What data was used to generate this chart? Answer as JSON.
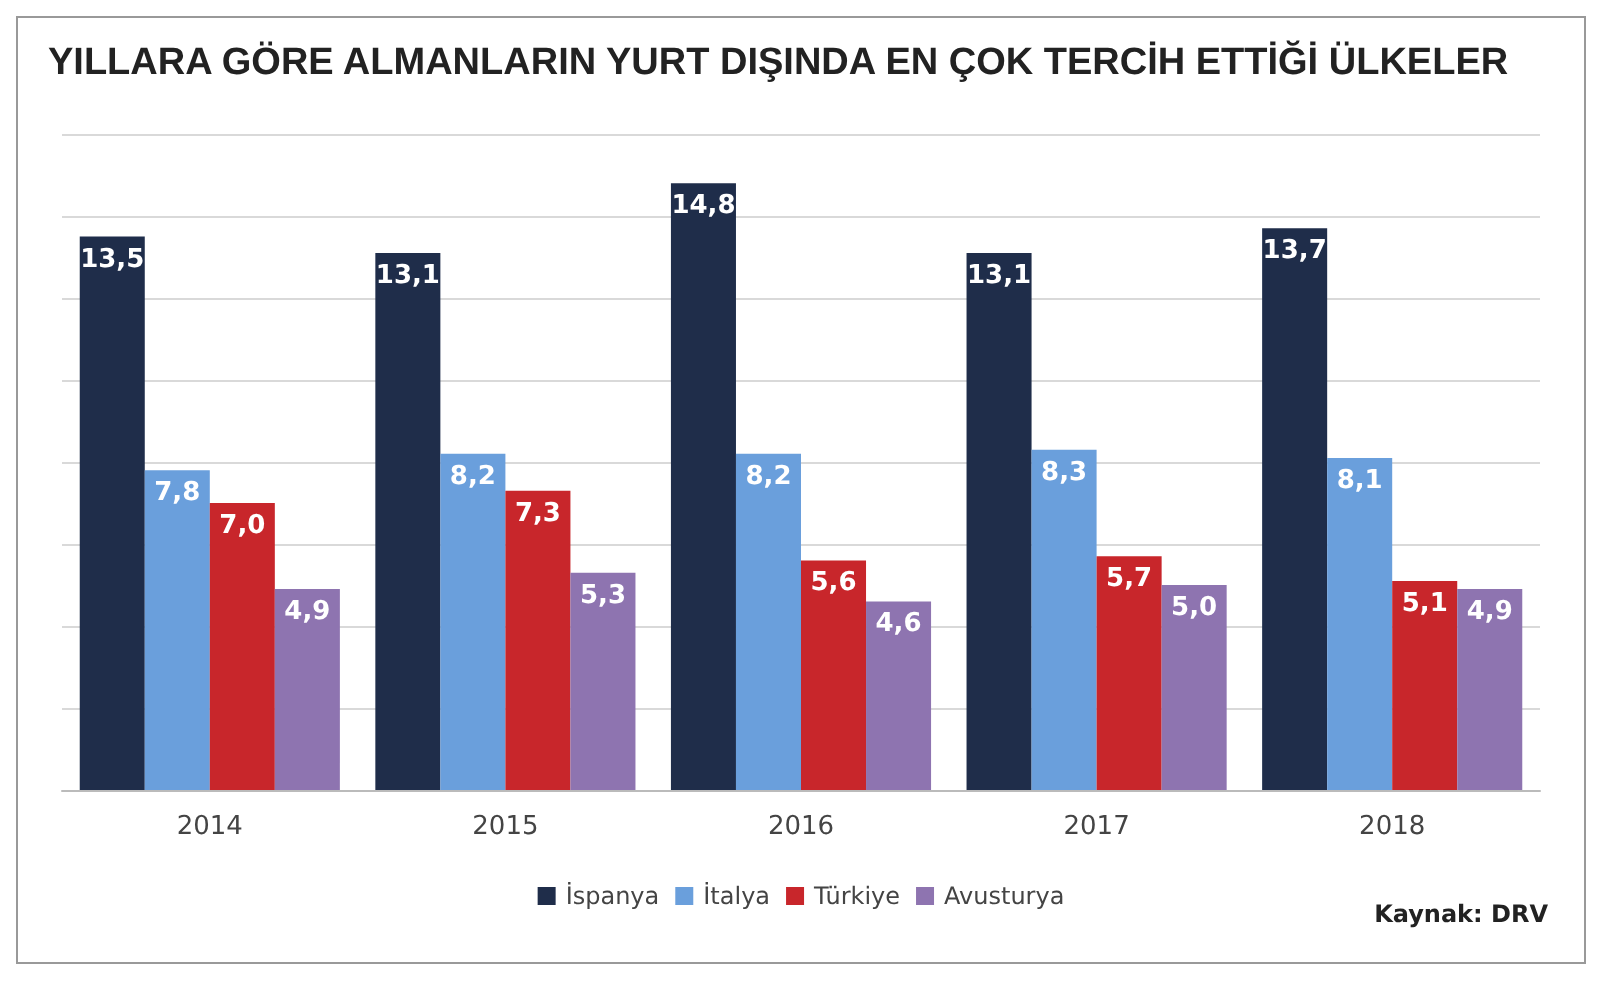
{
  "chart_data": {
    "type": "bar",
    "title": "YILLARA GÖRE ALMANLARIN YURT DIŞINDA EN ÇOK TERCİH ETTİĞİ ÜLKELER",
    "categories": [
      "2014",
      "2015",
      "2016",
      "2017",
      "2018"
    ],
    "series": [
      {
        "name": "İspanya",
        "color": "#1f2d4a",
        "values": [
          13.5,
          13.1,
          14.8,
          13.1,
          13.7
        ],
        "value_labels": [
          "13,5",
          "13,1",
          "14,8",
          "13,1",
          "13,7"
        ]
      },
      {
        "name": "İtalya",
        "color": "#6a9fdc",
        "values": [
          7.8,
          8.2,
          8.2,
          8.3,
          8.1
        ],
        "value_labels": [
          "7,8",
          "8,2",
          "8,2",
          "8,3",
          "8,1"
        ]
      },
      {
        "name": "Türkiye",
        "color": "#c8262b",
        "values": [
          7.0,
          7.3,
          5.6,
          5.7,
          5.1
        ],
        "value_labels": [
          "7,0",
          "7,3",
          "5,6",
          "5,7",
          "5,1"
        ]
      },
      {
        "name": "Avusturya",
        "color": "#8e74b0",
        "values": [
          4.9,
          5.3,
          4.6,
          5.0,
          4.9
        ],
        "value_labels": [
          "4,9",
          "5,3",
          "4,6",
          "5,0",
          "4,9"
        ]
      }
    ],
    "ylim": [
      0,
      16
    ],
    "yticks": [
      {
        "value": 0,
        "label": null
      },
      {
        "value": 2,
        "label": null
      },
      {
        "value": 4,
        "label": null
      },
      {
        "value": 6,
        "label": null
      },
      {
        "value": 8,
        "label": null
      },
      {
        "value": 10,
        "label": null
      },
      {
        "value": 12,
        "label": null
      },
      {
        "value": 14,
        "label": null
      },
      {
        "value": 16,
        "label": null
      }
    ],
    "tick_labels": "x",
    "grid": "y",
    "legend": "bottom",
    "annotations": [
      "Kaynak: DRV"
    ]
  }
}
